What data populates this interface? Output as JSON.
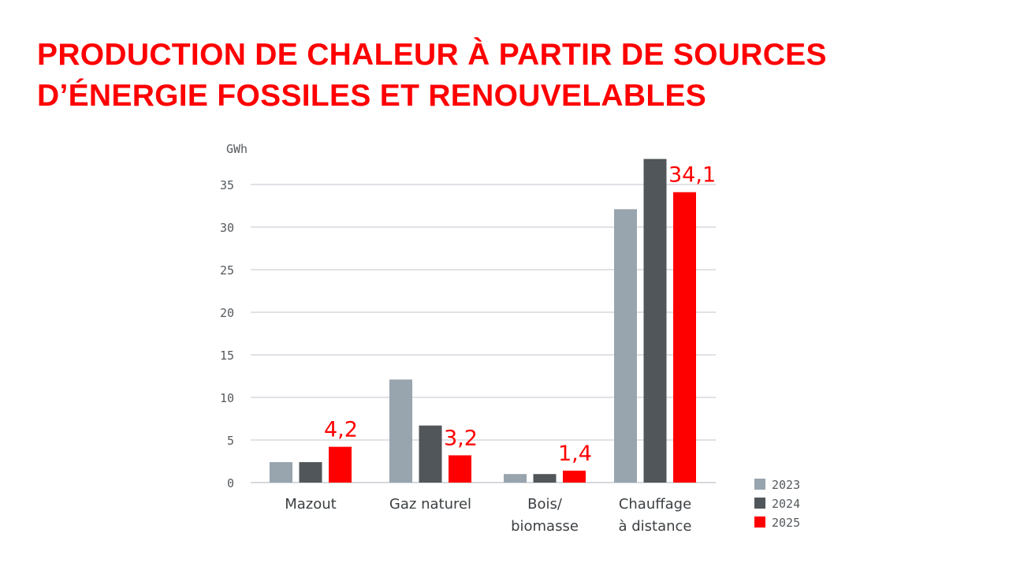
{
  "chart_data": {
    "type": "bar",
    "title": [
      "PRODUCTION DE CHALEUR À PARTIR DE SOURCES",
      "D’ÉNERGIE FOSSILES ET RENOUVELABLES"
    ],
    "ylabel": "GWh",
    "xlabel": "",
    "ylim": [
      0,
      38
    ],
    "yticks": [
      0,
      5,
      10,
      15,
      20,
      25,
      30,
      35
    ],
    "grid": true,
    "legend_position": "bottom-right",
    "categories": [
      [
        "Mazout"
      ],
      [
        "Gaz naturel"
      ],
      [
        "Bois/",
        "biomasse"
      ],
      [
        "Chauffage",
        "à distance"
      ]
    ],
    "series": [
      {
        "name": "2023",
        "color": "#98a4ae",
        "values": [
          2.4,
          12.1,
          1.0,
          32.1
        ]
      },
      {
        "name": "2024",
        "color": "#51565a",
        "values": [
          2.4,
          6.7,
          1.0,
          38.0
        ]
      },
      {
        "name": "2025",
        "color": "#ff0000",
        "values": [
          4.2,
          3.2,
          1.4,
          34.1
        ]
      }
    ],
    "data_labels": [
      "4,2",
      "3,2",
      "1,4",
      "34,1"
    ]
  }
}
